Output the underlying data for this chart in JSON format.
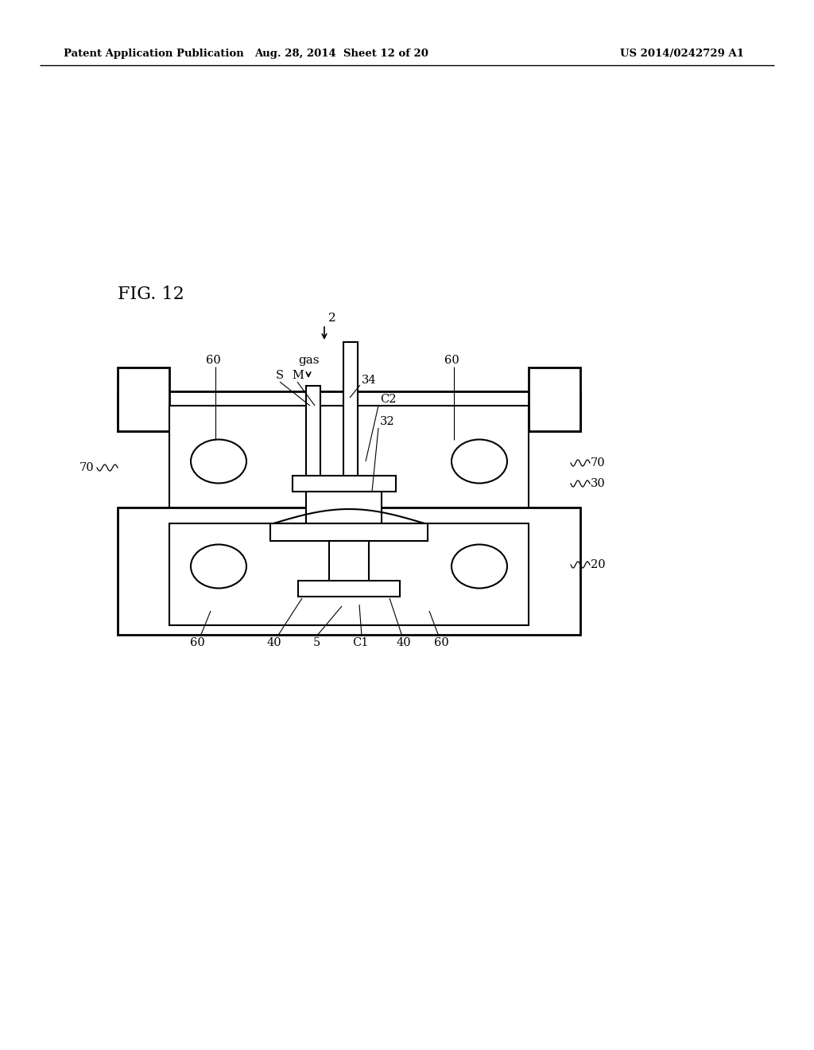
{
  "bg_color": "#ffffff",
  "line_color": "#000000",
  "header_left": "Patent Application Publication",
  "header_mid": "Aug. 28, 2014  Sheet 12 of 20",
  "header_right": "US 2014/0242729 A1",
  "fig_label": "FIG. 12"
}
